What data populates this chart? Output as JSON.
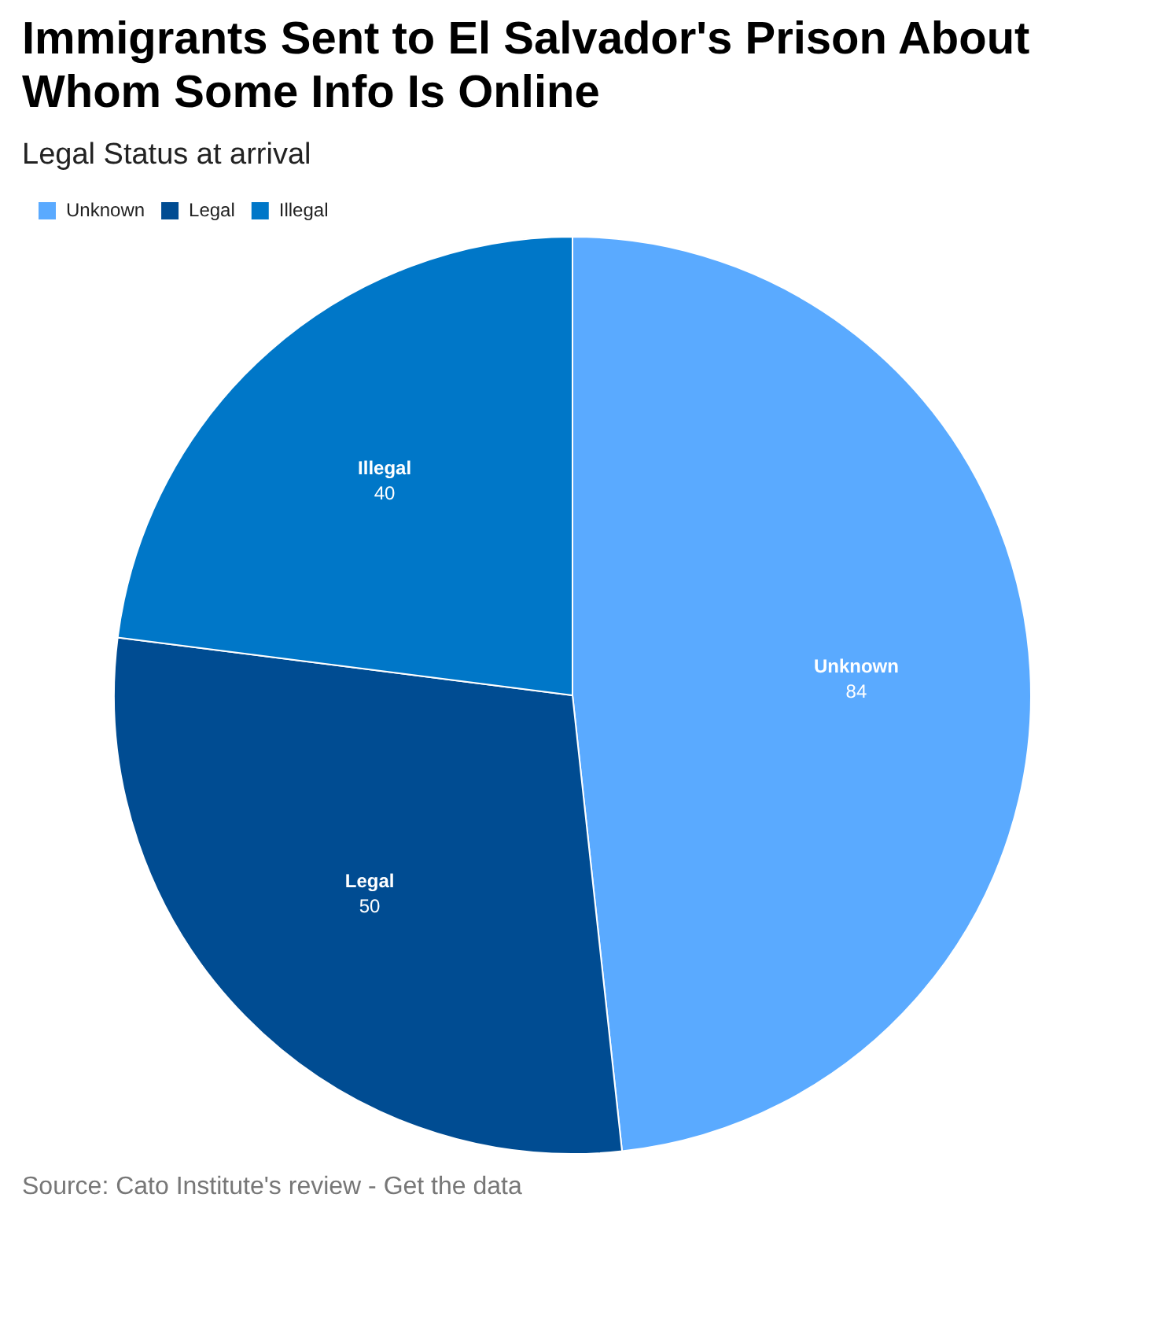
{
  "chart_data": {
    "type": "pie",
    "title": "Immigrants Sent to El Salvador's Prison About Whom Some Info Is Online",
    "subtitle": "Legal Status at arrival",
    "categories": [
      "Unknown",
      "Legal",
      "Illegal"
    ],
    "values": [
      84,
      50,
      40
    ],
    "colors": [
      "#5aaaff",
      "#004c92",
      "#0077c8"
    ],
    "data_labels": true,
    "legend": "top left",
    "annotations": [
      "Source: Cato Institute's review - Get the data"
    ]
  }
}
